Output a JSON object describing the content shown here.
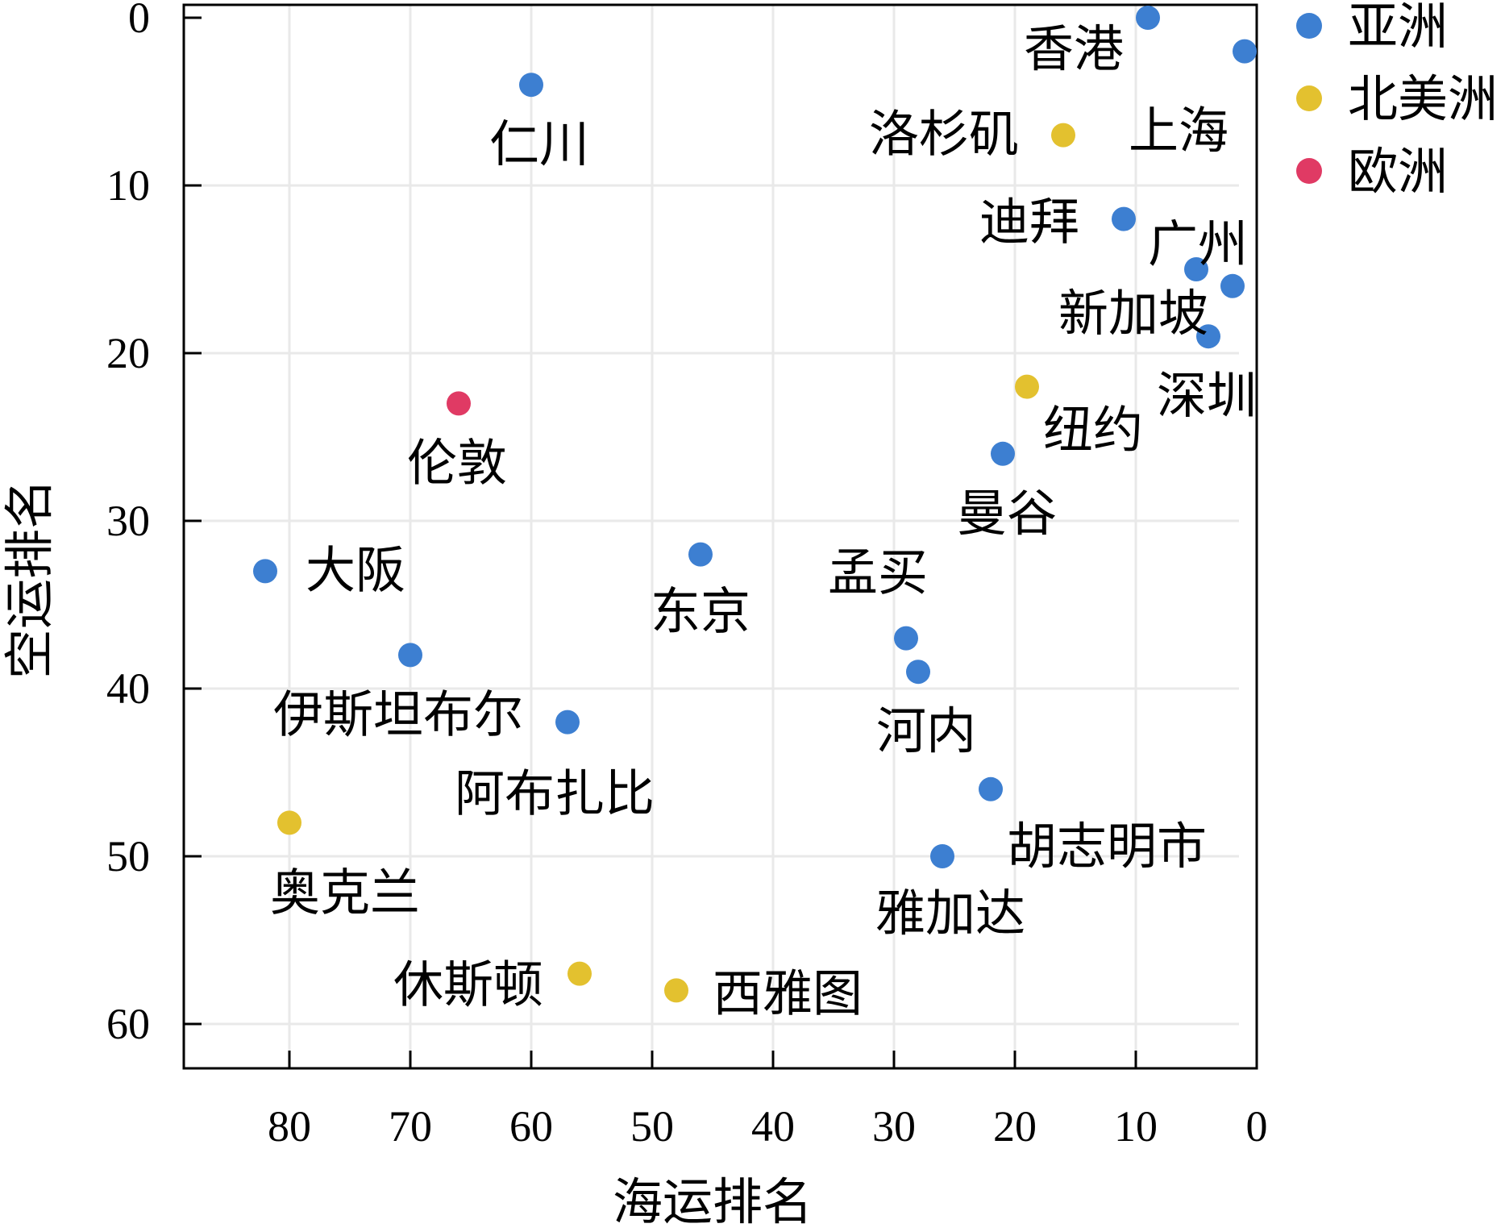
{
  "chart_data": {
    "type": "scatter",
    "xlabel": "海运排名",
    "ylabel": "空运排名",
    "xlim": [
      85,
      0
    ],
    "ylim": [
      0,
      63
    ],
    "x_ticks": [
      80,
      70,
      60,
      50,
      40,
      30,
      20,
      10,
      0
    ],
    "y_ticks": [
      0,
      10,
      20,
      30,
      40,
      50,
      60
    ],
    "x_reversed": true,
    "y_reversed": true,
    "grid": true,
    "legend_position": "outside-top-right",
    "series": [
      {
        "name": "亚洲",
        "color": "#3d7fd1",
        "points": [
          {
            "label": "香港",
            "x": 9,
            "y": 0
          },
          {
            "label": "上海",
            "x": 1,
            "y": 2
          },
          {
            "label": "仁川",
            "x": 60,
            "y": 4
          },
          {
            "label": "迪拜",
            "x": 11,
            "y": 12
          },
          {
            "label": "广州",
            "x": 5,
            "y": 15
          },
          {
            "label": "新加坡",
            "x": 2,
            "y": 16
          },
          {
            "label": "深圳",
            "x": 4,
            "y": 19
          },
          {
            "label": "曼谷",
            "x": 21,
            "y": 26
          },
          {
            "label": "大阪",
            "x": 82,
            "y": 33
          },
          {
            "label": "东京",
            "x": 46,
            "y": 32
          },
          {
            "label": "孟买",
            "x": 29,
            "y": 37
          },
          {
            "label": "河内",
            "x": 28,
            "y": 39
          },
          {
            "label": "伊斯坦布尔",
            "x": 70,
            "y": 38
          },
          {
            "label": "阿布扎比",
            "x": 57,
            "y": 42
          },
          {
            "label": "胡志明市",
            "x": 22,
            "y": 46
          },
          {
            "label": "雅加达",
            "x": 26,
            "y": 50
          }
        ]
      },
      {
        "name": "北美洲",
        "color": "#e3c12f",
        "points": [
          {
            "label": "洛杉矶",
            "x": 16,
            "y": 7
          },
          {
            "label": "纽约",
            "x": 19,
            "y": 22
          },
          {
            "label": "奥克兰",
            "x": 80,
            "y": 48
          },
          {
            "label": "休斯顿",
            "x": 56,
            "y": 57
          },
          {
            "label": "西雅图",
            "x": 48,
            "y": 58
          }
        ]
      },
      {
        "name": "欧洲",
        "color": "#e03a64",
        "points": [
          {
            "label": "伦敦",
            "x": 66,
            "y": 23
          }
        ]
      }
    ]
  }
}
